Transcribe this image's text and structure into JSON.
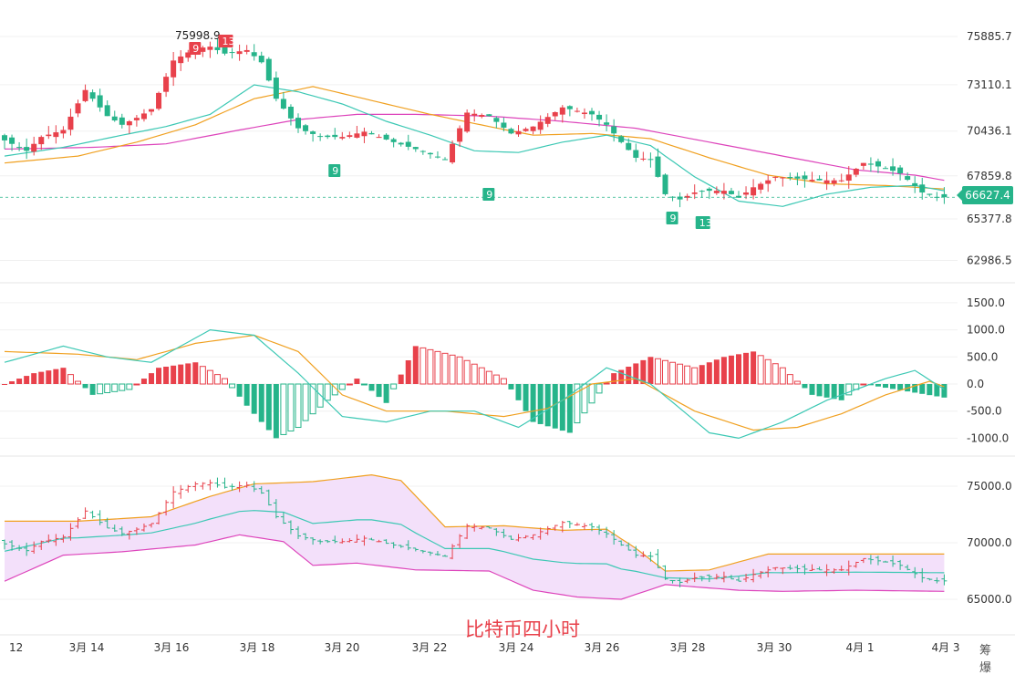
{
  "colors": {
    "up": "#e8414b",
    "down": "#26b48a",
    "ma_fast": "#3cc8b4",
    "ma_mid": "#f0a020",
    "ma_slow": "#dd44bb",
    "boll_fill": "#f3e0fa",
    "grid": "#f0f0f0",
    "axis_text": "#333333"
  },
  "current_price": "66627.4",
  "title": "比特币四小时",
  "corner_text": "筹 爆",
  "high_marker": "75998.9",
  "chart_data": [
    {
      "type": "candlestick",
      "name": "price",
      "yticks": [
        "75885.7",
        "73110.1",
        "70436.1",
        "67859.8",
        "65377.8",
        "62986.5"
      ],
      "x_labels": [
        "12",
        "3月 14",
        "3月 16",
        "3月 18",
        "3月 20",
        "3月 22",
        "3月 24",
        "3月 26",
        "3月 28",
        "3月 30",
        "4月 1",
        "4月 3"
      ],
      "ma_keys": [
        [
          0,
          69000
        ],
        [
          8,
          69500
        ],
        [
          16,
          70200
        ],
        [
          22,
          70700
        ],
        [
          28,
          71400
        ],
        [
          34,
          73100
        ],
        [
          40,
          72700
        ],
        [
          46,
          72000
        ],
        [
          52,
          71000
        ],
        [
          58,
          70200
        ],
        [
          64,
          69300
        ],
        [
          70,
          69200
        ],
        [
          76,
          69800
        ],
        [
          82,
          70200
        ],
        [
          88,
          69600
        ],
        [
          94,
          67800
        ],
        [
          100,
          66400
        ],
        [
          106,
          66100
        ],
        [
          112,
          66800
        ],
        [
          118,
          67200
        ],
        [
          124,
          67300
        ],
        [
          128,
          67000
        ]
      ],
      "ma_mid_keys": [
        [
          0,
          68600
        ],
        [
          10,
          69000
        ],
        [
          18,
          69800
        ],
        [
          26,
          70800
        ],
        [
          34,
          72300
        ],
        [
          42,
          73000
        ],
        [
          50,
          72200
        ],
        [
          58,
          71400
        ],
        [
          66,
          70700
        ],
        [
          72,
          70200
        ],
        [
          80,
          70300
        ],
        [
          88,
          70000
        ],
        [
          96,
          68900
        ],
        [
          104,
          67900
        ],
        [
          112,
          67400
        ],
        [
          120,
          67300
        ],
        [
          128,
          67100
        ]
      ],
      "ma_slow_keys": [
        [
          0,
          69400
        ],
        [
          12,
          69500
        ],
        [
          22,
          69700
        ],
        [
          32,
          70500
        ],
        [
          40,
          71100
        ],
        [
          48,
          71400
        ],
        [
          56,
          71400
        ],
        [
          66,
          71300
        ],
        [
          76,
          71000
        ],
        [
          86,
          70600
        ],
        [
          96,
          69800
        ],
        [
          106,
          69000
        ],
        [
          116,
          68200
        ],
        [
          124,
          67900
        ],
        [
          128,
          67600
        ]
      ],
      "candle_keys": [
        [
          0,
          69900
        ],
        [
          3,
          69300
        ],
        [
          5,
          70100
        ],
        [
          8,
          70500
        ],
        [
          11,
          72800
        ],
        [
          14,
          71300
        ],
        [
          16,
          70800
        ],
        [
          18,
          71200
        ],
        [
          20,
          71700
        ],
        [
          23,
          74500
        ],
        [
          26,
          75200
        ],
        [
          28,
          75300
        ],
        [
          30,
          74900
        ],
        [
          33,
          75100
        ],
        [
          35,
          74400
        ],
        [
          37,
          72300
        ],
        [
          40,
          70600
        ],
        [
          43,
          70100
        ],
        [
          46,
          70100
        ],
        [
          49,
          70400
        ],
        [
          53,
          69800
        ],
        [
          56,
          69400
        ],
        [
          60,
          68800
        ],
        [
          63,
          71500
        ],
        [
          66,
          71300
        ],
        [
          69,
          70300
        ],
        [
          72,
          70700
        ],
        [
          76,
          71800
        ],
        [
          80,
          71400
        ],
        [
          82,
          70800
        ],
        [
          84,
          69800
        ],
        [
          86,
          68900
        ],
        [
          88,
          68800
        ],
        [
          90,
          66800
        ],
        [
          92,
          66500
        ],
        [
          94,
          66900
        ],
        [
          96,
          67000
        ],
        [
          98,
          67000
        ],
        [
          100,
          66600
        ],
        [
          102,
          67200
        ],
        [
          105,
          67800
        ],
        [
          108,
          67700
        ],
        [
          111,
          67600
        ],
        [
          114,
          67600
        ],
        [
          117,
          68600
        ],
        [
          120,
          68300
        ],
        [
          122,
          68000
        ],
        [
          125,
          66900
        ],
        [
          127,
          66627
        ]
      ]
    },
    {
      "type": "macd",
      "name": "MACD",
      "yticks": [
        "1500.0",
        "1000.0",
        "500.0",
        "0.0",
        "-500.0",
        "-1000.0"
      ],
      "dif_keys": [
        [
          0,
          400
        ],
        [
          8,
          700
        ],
        [
          14,
          500
        ],
        [
          20,
          400
        ],
        [
          28,
          1000
        ],
        [
          34,
          900
        ],
        [
          40,
          200
        ],
        [
          46,
          -600
        ],
        [
          52,
          -700
        ],
        [
          58,
          -500
        ],
        [
          64,
          -500
        ],
        [
          70,
          -800
        ],
        [
          76,
          -300
        ],
        [
          82,
          300
        ],
        [
          88,
          0
        ],
        [
          96,
          -900
        ],
        [
          100,
          -1000
        ],
        [
          106,
          -700
        ],
        [
          112,
          -300
        ],
        [
          120,
          100
        ],
        [
          124,
          250
        ],
        [
          128,
          -100
        ]
      ],
      "dea_keys": [
        [
          0,
          600
        ],
        [
          10,
          550
        ],
        [
          18,
          450
        ],
        [
          26,
          750
        ],
        [
          34,
          900
        ],
        [
          40,
          600
        ],
        [
          46,
          -200
        ],
        [
          52,
          -500
        ],
        [
          60,
          -500
        ],
        [
          68,
          -600
        ],
        [
          74,
          -450
        ],
        [
          80,
          0
        ],
        [
          86,
          100
        ],
        [
          94,
          -500
        ],
        [
          102,
          -850
        ],
        [
          108,
          -800
        ],
        [
          114,
          -550
        ],
        [
          120,
          -200
        ],
        [
          126,
          50
        ],
        [
          128,
          -50
        ]
      ],
      "hist_keys": [
        [
          0,
          0
        ],
        [
          4,
          200
        ],
        [
          8,
          300
        ],
        [
          12,
          -200
        ],
        [
          17,
          -100
        ],
        [
          21,
          300
        ],
        [
          26,
          400
        ],
        [
          30,
          100
        ],
        [
          33,
          -400
        ],
        [
          37,
          -1000
        ],
        [
          40,
          -800
        ],
        [
          44,
          -300
        ],
        [
          48,
          100
        ],
        [
          52,
          -350
        ],
        [
          56,
          700
        ],
        [
          62,
          500
        ],
        [
          68,
          100
        ],
        [
          72,
          -700
        ],
        [
          77,
          -900
        ],
        [
          83,
          200
        ],
        [
          88,
          500
        ],
        [
          94,
          300
        ],
        [
          98,
          500
        ],
        [
          102,
          600
        ],
        [
          106,
          300
        ],
        [
          110,
          -200
        ],
        [
          114,
          -300
        ],
        [
          117,
          0
        ],
        [
          128,
          -250
        ]
      ]
    },
    {
      "type": "bollinger",
      "name": "BOLL",
      "yticks": [
        "75000.0",
        "70000.0",
        "65000.0"
      ],
      "upper_keys": [
        [
          0,
          71900
        ],
        [
          10,
          71900
        ],
        [
          20,
          72300
        ],
        [
          28,
          74100
        ],
        [
          34,
          75200
        ],
        [
          42,
          75400
        ],
        [
          50,
          76000
        ],
        [
          54,
          75500
        ],
        [
          60,
          71400
        ],
        [
          68,
          71500
        ],
        [
          76,
          71100
        ],
        [
          82,
          71200
        ],
        [
          86,
          69500
        ],
        [
          90,
          67500
        ],
        [
          96,
          67600
        ],
        [
          100,
          68300
        ],
        [
          104,
          69000
        ],
        [
          112,
          69000
        ],
        [
          128,
          69000
        ]
      ],
      "lower_keys": [
        [
          0,
          66600
        ],
        [
          8,
          68900
        ],
        [
          16,
          69200
        ],
        [
          26,
          69800
        ],
        [
          32,
          70700
        ],
        [
          38,
          70100
        ],
        [
          42,
          68000
        ],
        [
          48,
          68200
        ],
        [
          56,
          67600
        ],
        [
          66,
          67500
        ],
        [
          72,
          65800
        ],
        [
          78,
          65200
        ],
        [
          84,
          65000
        ],
        [
          90,
          66300
        ],
        [
          100,
          65800
        ],
        [
          106,
          65700
        ],
        [
          116,
          65800
        ],
        [
          128,
          65700
        ]
      ]
    }
  ]
}
